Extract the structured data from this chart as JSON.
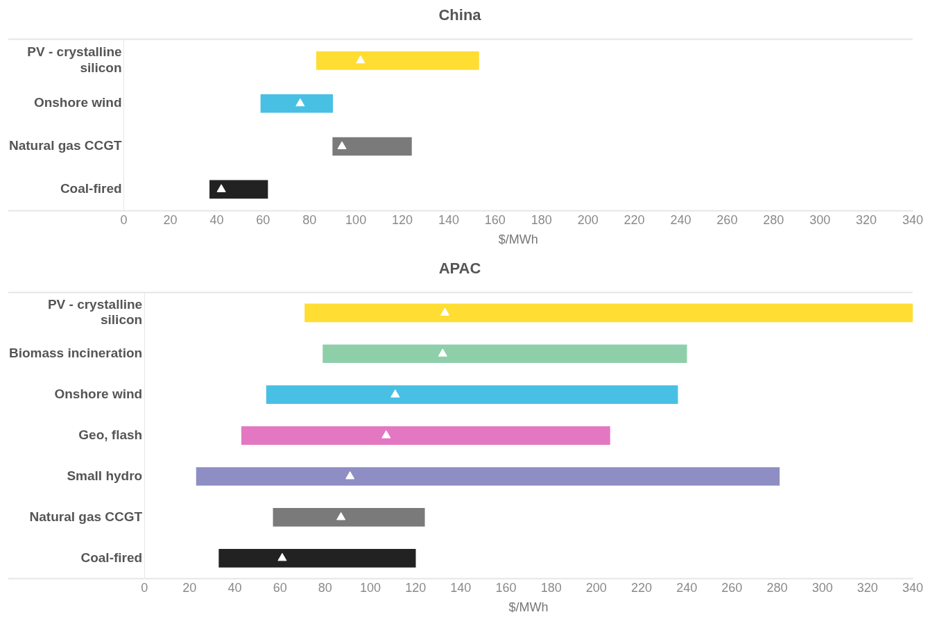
{
  "chart_data": [
    {
      "type": "bar",
      "title": "China",
      "orientation": "horizontal",
      "xlabel": "$/MWh",
      "categories": [
        "PV - crystalline silicon",
        "Onshore wind",
        "Natural gas CCGT",
        "Coal-fired"
      ],
      "series": [
        {
          "base": [
            83,
            59,
            90,
            37
          ],
          "values": [
            70,
            31,
            34,
            25
          ],
          "colors": [
            "#ffdd33",
            "#48c0e4",
            "#7a7a7a",
            "#222222"
          ]
        },
        {
          "type": "scatter",
          "values": [
            102,
            76,
            94,
            42
          ],
          "color": "#ffffff",
          "marker": "triangle"
        }
      ],
      "xlim": [
        0,
        340
      ],
      "xticks": [
        0,
        20,
        40,
        60,
        80,
        100,
        120,
        140,
        160,
        180,
        200,
        220,
        240,
        260,
        280,
        300,
        320,
        340
      ],
      "grid": false,
      "legend": false
    },
    {
      "type": "bar",
      "title": "APAC",
      "orientation": "horizontal",
      "xlabel": "$/MWh",
      "categories": [
        "PV - crystalline silicon",
        "Biomass incineration",
        "Onshore wind",
        "Geo, flash",
        "Small hydro",
        "Natural gas CCGT",
        "Coal-fired"
      ],
      "series": [
        {
          "base": [
            71,
            79,
            54,
            43,
            23,
            57,
            33
          ],
          "values": [
            269,
            161,
            182,
            163,
            258,
            67,
            87
          ],
          "colors": [
            "#ffdd33",
            "#8ecfaa",
            "#48c0e4",
            "#e377c2",
            "#8e8ec4",
            "#7a7a7a",
            "#222222"
          ]
        },
        {
          "type": "scatter",
          "values": [
            133,
            132,
            111,
            107,
            91,
            87,
            61
          ],
          "color": "#ffffff",
          "marker": "triangle"
        }
      ],
      "xlim": [
        0,
        340
      ],
      "xticks": [
        0,
        20,
        40,
        60,
        80,
        100,
        120,
        140,
        160,
        180,
        200,
        220,
        240,
        260,
        280,
        300,
        320,
        340
      ],
      "grid": false,
      "legend": false
    }
  ]
}
